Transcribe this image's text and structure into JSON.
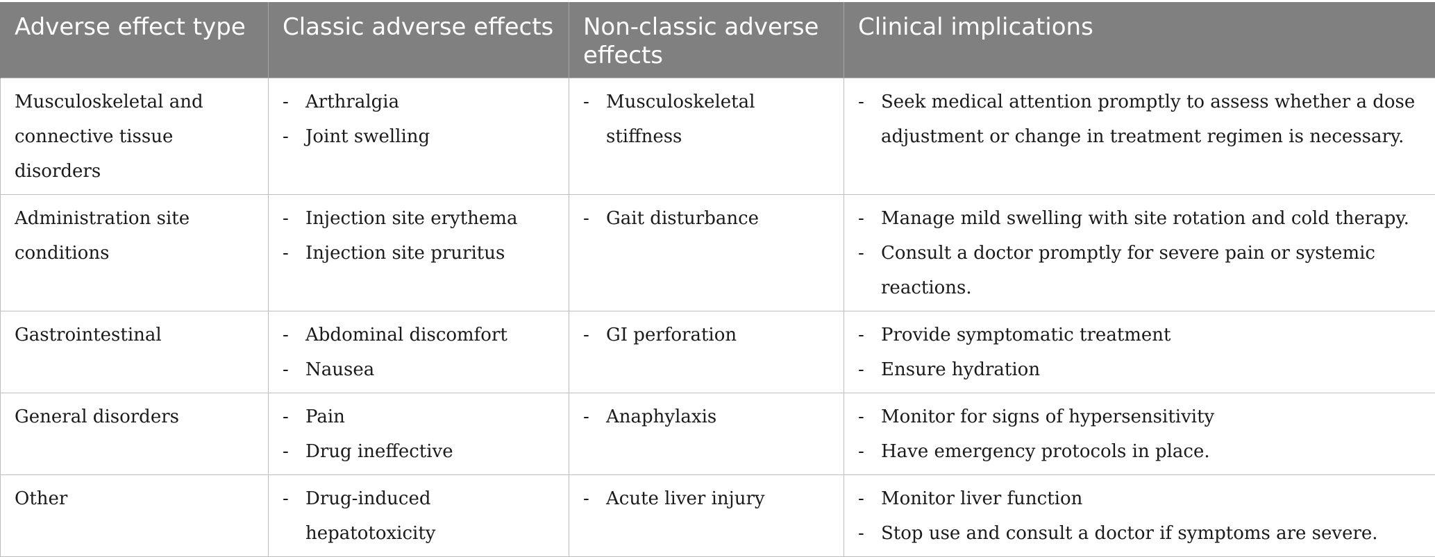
{
  "table": {
    "headers": [
      "Adverse effect type",
      "Classic adverse effects",
      "Non-classic adverse effects",
      "Clinical implications"
    ],
    "rows": [
      {
        "type": "Musculoskeletal and connective tissue disorders",
        "classic": [
          "Arthralgia",
          "Joint swelling"
        ],
        "non_classic": [
          "Musculoskeletal stiffness"
        ],
        "clinical": [
          "Seek medical attention promptly to assess whether a dose adjustment or change in treatment regimen is necessary."
        ]
      },
      {
        "type": "Administration site conditions",
        "classic": [
          "Injection site erythema",
          "Injection site pruritus"
        ],
        "non_classic": [
          "Gait disturbance"
        ],
        "clinical": [
          "Manage mild swelling with site rotation and cold therapy.",
          "Consult a doctor promptly for severe pain or systemic reactions."
        ]
      },
      {
        "type": "Gastrointestinal",
        "classic": [
          "Abdominal discomfort",
          "Nausea"
        ],
        "non_classic": [
          "GI perforation"
        ],
        "clinical": [
          "Provide symptomatic treatment",
          "Ensure hydration"
        ]
      },
      {
        "type": "General disorders",
        "classic": [
          "Pain",
          "Drug ineffective"
        ],
        "non_classic": [
          "Anaphylaxis"
        ],
        "clinical": [
          "Monitor for signs of hypersensitivity",
          "Have emergency protocols in place."
        ]
      },
      {
        "type": "Other",
        "classic": [
          "Drug-induced hepatotoxicity"
        ],
        "non_classic": [
          "Acute liver injury"
        ],
        "clinical": [
          "Monitor liver function",
          "Stop use and consult a doctor if symptoms are severe."
        ]
      }
    ],
    "bullet_marker": "-",
    "colors": {
      "header_bg": "#808080",
      "header_text": "#ffffff",
      "border": "#bdbdbd",
      "body_text": "#1a1a1a"
    }
  }
}
